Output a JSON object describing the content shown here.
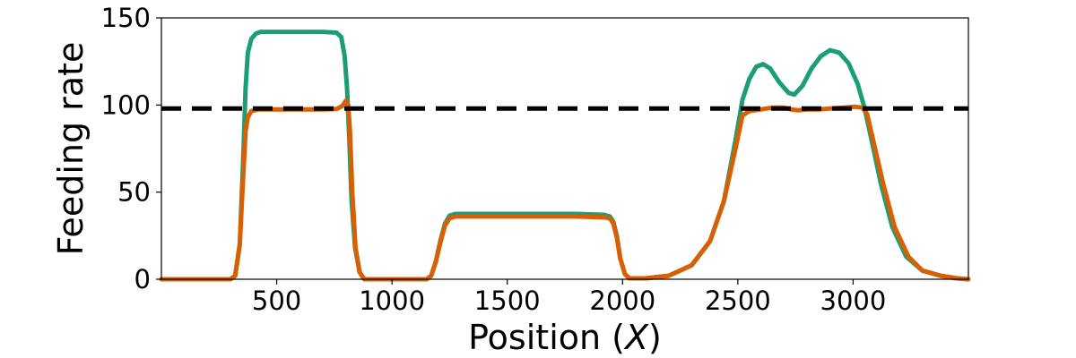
{
  "chart_data": {
    "type": "line",
    "title": "",
    "xlabel_prefix": "Position (",
    "xlabel_var": "X",
    "xlabel_suffix": ")",
    "ylabel": "Feeding rate",
    "xlim": [
      0,
      3500
    ],
    "ylim": [
      0,
      150
    ],
    "xticks": [
      500,
      1000,
      1500,
      2000,
      2500,
      3000
    ],
    "yticks": [
      0,
      50,
      100,
      150
    ],
    "grid": false,
    "reference_line": {
      "y": 98,
      "style": "dashed",
      "color": "#000000"
    },
    "series": [
      {
        "color": "#1b9e77",
        "points": [
          [
            0,
            0
          ],
          [
            300,
            0
          ],
          [
            320,
            2
          ],
          [
            340,
            20
          ],
          [
            355,
            70
          ],
          [
            365,
            110
          ],
          [
            375,
            130
          ],
          [
            390,
            138
          ],
          [
            410,
            141
          ],
          [
            430,
            142
          ],
          [
            500,
            142
          ],
          [
            600,
            142
          ],
          [
            700,
            142
          ],
          [
            760,
            141.5
          ],
          [
            780,
            139
          ],
          [
            795,
            128
          ],
          [
            805,
            110
          ],
          [
            815,
            80
          ],
          [
            825,
            45
          ],
          [
            840,
            18
          ],
          [
            860,
            4
          ],
          [
            880,
            0
          ],
          [
            1150,
            0
          ],
          [
            1170,
            2
          ],
          [
            1190,
            10
          ],
          [
            1210,
            22
          ],
          [
            1230,
            32
          ],
          [
            1250,
            36.5
          ],
          [
            1275,
            37.5
          ],
          [
            1400,
            37.5
          ],
          [
            1600,
            37.5
          ],
          [
            1800,
            37.5
          ],
          [
            1920,
            37
          ],
          [
            1945,
            36
          ],
          [
            1960,
            33
          ],
          [
            1975,
            25
          ],
          [
            1990,
            12
          ],
          [
            2010,
            3
          ],
          [
            2030,
            0.5
          ],
          [
            2100,
            0.5
          ],
          [
            2200,
            2
          ],
          [
            2300,
            8
          ],
          [
            2380,
            22
          ],
          [
            2440,
            45
          ],
          [
            2490,
            80
          ],
          [
            2520,
            103
          ],
          [
            2550,
            115
          ],
          [
            2580,
            122
          ],
          [
            2610,
            123.5
          ],
          [
            2640,
            121
          ],
          [
            2680,
            113
          ],
          [
            2720,
            107
          ],
          [
            2745,
            106
          ],
          [
            2780,
            111
          ],
          [
            2820,
            121
          ],
          [
            2860,
            128
          ],
          [
            2900,
            131.5
          ],
          [
            2940,
            130
          ],
          [
            2980,
            124
          ],
          [
            3020,
            112
          ],
          [
            3050,
            98
          ],
          [
            3080,
            80
          ],
          [
            3120,
            55
          ],
          [
            3170,
            30
          ],
          [
            3230,
            13
          ],
          [
            3300,
            5
          ],
          [
            3380,
            2
          ],
          [
            3450,
            0.5
          ],
          [
            3500,
            0
          ]
        ]
      },
      {
        "color": "#d95f02",
        "points": [
          [
            0,
            0
          ],
          [
            300,
            0
          ],
          [
            320,
            2
          ],
          [
            340,
            20
          ],
          [
            355,
            60
          ],
          [
            365,
            85
          ],
          [
            375,
            93
          ],
          [
            390,
            96.5
          ],
          [
            420,
            97.5
          ],
          [
            500,
            97.5
          ],
          [
            600,
            97.5
          ],
          [
            700,
            97.5
          ],
          [
            760,
            97.7
          ],
          [
            785,
            99.5
          ],
          [
            800,
            102.5
          ],
          [
            810,
            100
          ],
          [
            818,
            85
          ],
          [
            828,
            50
          ],
          [
            842,
            18
          ],
          [
            860,
            4
          ],
          [
            880,
            0
          ],
          [
            1150,
            0
          ],
          [
            1170,
            2
          ],
          [
            1190,
            10
          ],
          [
            1210,
            21
          ],
          [
            1230,
            31
          ],
          [
            1250,
            35
          ],
          [
            1275,
            36
          ],
          [
            1400,
            36
          ],
          [
            1600,
            36
          ],
          [
            1800,
            36
          ],
          [
            1920,
            35.5
          ],
          [
            1945,
            35
          ],
          [
            1960,
            32
          ],
          [
            1975,
            24
          ],
          [
            1990,
            12
          ],
          [
            2010,
            3
          ],
          [
            2030,
            0.5
          ],
          [
            2100,
            0.5
          ],
          [
            2200,
            2
          ],
          [
            2300,
            8
          ],
          [
            2380,
            22
          ],
          [
            2440,
            45
          ],
          [
            2490,
            75
          ],
          [
            2520,
            94
          ],
          [
            2550,
            96.5
          ],
          [
            2600,
            97.5
          ],
          [
            2650,
            98.5
          ],
          [
            2700,
            98.5
          ],
          [
            2730,
            97.5
          ],
          [
            2760,
            97
          ],
          [
            2800,
            97.5
          ],
          [
            2850,
            97.5
          ],
          [
            2900,
            98
          ],
          [
            2960,
            98.5
          ],
          [
            3010,
            99
          ],
          [
            3040,
            98.5
          ],
          [
            3060,
            95
          ],
          [
            3090,
            78
          ],
          [
            3130,
            55
          ],
          [
            3180,
            30
          ],
          [
            3240,
            13
          ],
          [
            3300,
            5
          ],
          [
            3380,
            2
          ],
          [
            3450,
            0.5
          ],
          [
            3500,
            0
          ]
        ]
      }
    ]
  }
}
